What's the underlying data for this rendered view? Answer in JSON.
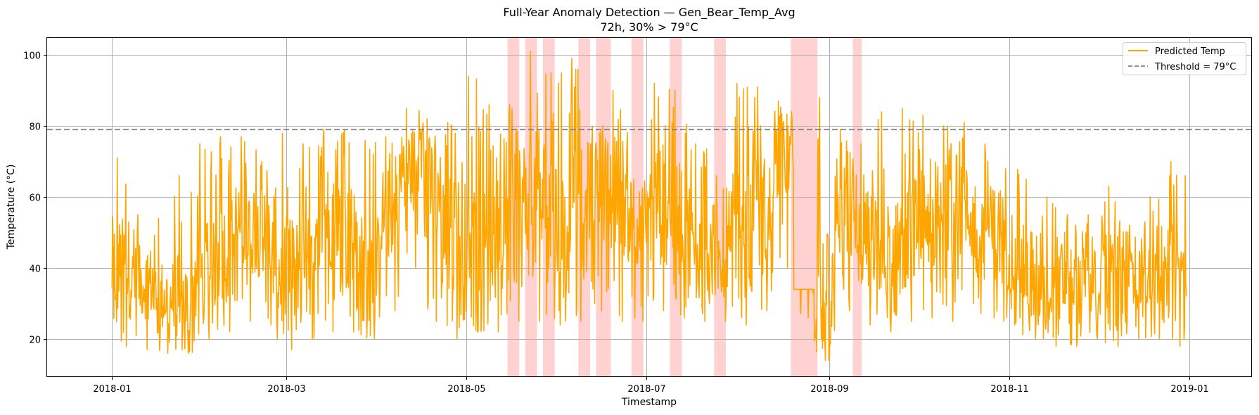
{
  "chart_data": {
    "type": "line",
    "title": "Full-Year Anomaly Detection — Gen_Bear_Temp_Avg",
    "subtitle": "72h, 30% > 79°C",
    "xlabel": "Timestamp",
    "ylabel": "Temperature (°C)",
    "xlim": [
      "2017-12-10",
      "2019-01-22"
    ],
    "ylim": [
      9.5,
      104.8
    ],
    "x_ticks": [
      "2018-01",
      "2018-03",
      "2018-05",
      "2018-07",
      "2018-09",
      "2018-11",
      "2019-01"
    ],
    "x_tick_dates": [
      "2018-01-01",
      "2018-03-01",
      "2018-05-01",
      "2018-07-01",
      "2018-09-01",
      "2018-11-01",
      "2019-01-01"
    ],
    "y_ticks": [
      20,
      40,
      60,
      80,
      100
    ],
    "grid": true,
    "legend_position": "top-right",
    "threshold": {
      "value": 79,
      "label": "Threshold = 79°C",
      "color": "#808080",
      "style": "dashed"
    },
    "series": [
      {
        "name": "Predicted Temp",
        "color": "#FFA500",
        "x": [
          "2018-01-01",
          "2018-01-08",
          "2018-01-15",
          "2018-01-22",
          "2018-01-29",
          "2018-02-05",
          "2018-02-12",
          "2018-02-19",
          "2018-02-26",
          "2018-03-05",
          "2018-03-12",
          "2018-03-19",
          "2018-03-26",
          "2018-04-02",
          "2018-04-09",
          "2018-04-16",
          "2018-04-23",
          "2018-04-30",
          "2018-05-07",
          "2018-05-14",
          "2018-05-21",
          "2018-05-28",
          "2018-06-04",
          "2018-06-11",
          "2018-06-18",
          "2018-06-25",
          "2018-07-02",
          "2018-07-09",
          "2018-07-16",
          "2018-07-23",
          "2018-07-30",
          "2018-08-06",
          "2018-08-13",
          "2018-08-20",
          "2018-08-27",
          "2018-09-03",
          "2018-09-10",
          "2018-09-17",
          "2018-09-24",
          "2018-10-01",
          "2018-10-08",
          "2018-10-15",
          "2018-10-22",
          "2018-10-29",
          "2018-11-05",
          "2018-11-12",
          "2018-11-19",
          "2018-11-26",
          "2018-12-03",
          "2018-12-10",
          "2018-12-17",
          "2018-12-24",
          "2018-12-31"
        ],
        "y_mean": [
          40,
          36,
          32,
          30,
          38,
          45,
          52,
          50,
          38,
          42,
          55,
          48,
          40,
          55,
          68,
          62,
          50,
          45,
          48,
          60,
          58,
          50,
          55,
          62,
          60,
          52,
          58,
          55,
          45,
          42,
          48,
          55,
          72,
          50,
          30,
          55,
          48,
          42,
          50,
          55,
          52,
          55,
          50,
          45,
          40,
          38,
          35,
          36,
          38,
          36,
          35,
          38,
          32
        ],
        "y_min": [
          18,
          17,
          16,
          16,
          20,
          22,
          25,
          24,
          17,
          20,
          22,
          22,
          20,
          28,
          40,
          25,
          20,
          22,
          22,
          25,
          25,
          24,
          25,
          28,
          25,
          25,
          28,
          26,
          25,
          25,
          24,
          28,
          40,
          26,
          14,
          28,
          24,
          22,
          25,
          26,
          25,
          30,
          26,
          24,
          20,
          18,
          18,
          20,
          18,
          20,
          20,
          18,
          19
        ],
        "y_max": [
          71,
          55,
          54,
          66,
          75,
          77,
          77,
          70,
          78,
          75,
          79,
          79,
          76,
          77,
          85,
          82,
          81,
          94,
          86,
          86,
          101,
          95,
          99,
          80,
          90,
          65,
          92,
          90,
          75,
          66,
          92,
          91,
          87,
          34,
          88,
          79,
          75,
          84,
          85,
          83,
          80,
          81,
          75,
          68,
          65,
          60,
          55,
          55,
          63,
          52,
          60,
          70,
          65
        ]
      }
    ],
    "anomaly_spans": [
      [
        "2018-05-15",
        "2018-05-19"
      ],
      [
        "2018-05-21",
        "2018-05-25"
      ],
      [
        "2018-05-27",
        "2018-05-31"
      ],
      [
        "2018-06-08",
        "2018-06-12"
      ],
      [
        "2018-06-14",
        "2018-06-19"
      ],
      [
        "2018-06-26",
        "2018-06-30"
      ],
      [
        "2018-07-09",
        "2018-07-13"
      ],
      [
        "2018-07-24",
        "2018-07-28"
      ],
      [
        "2018-08-19",
        "2018-08-28"
      ],
      [
        "2018-09-09",
        "2018-09-12"
      ]
    ],
    "anomaly_color": "#FF9999"
  }
}
